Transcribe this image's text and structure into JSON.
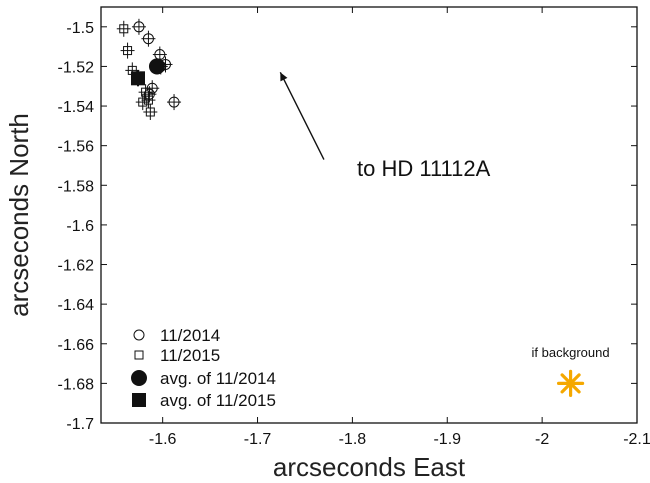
{
  "chart_data": {
    "type": "scatter",
    "xlabel": "arcseconds East",
    "ylabel": "arcseconds North",
    "xlim": [
      -1.535,
      -2.1
    ],
    "ylim": [
      -1.7,
      -1.49
    ],
    "x_ticks": [
      -1.6,
      -1.7,
      -1.8,
      -1.9,
      -2,
      -2.1
    ],
    "x_tick_labels": [
      "-1.6",
      "-1.7",
      "-1.8",
      "-1.9",
      "-2",
      "-2.1"
    ],
    "y_ticks": [
      -1.5,
      -1.52,
      -1.54,
      -1.56,
      -1.58,
      -1.6,
      -1.62,
      -1.64,
      -1.66,
      -1.68,
      -1.7
    ],
    "y_tick_labels": [
      "-1.5",
      "-1.52",
      "-1.54",
      "-1.56",
      "-1.58",
      "-1.6",
      "-1.62",
      "-1.64",
      "-1.66",
      "-1.68",
      "-1.7"
    ],
    "grid": false,
    "legend_position": "bottom-left",
    "series": [
      {
        "name": "11/2014",
        "marker": "circle-open",
        "points": [
          {
            "x": -1.575,
            "y": -1.5
          },
          {
            "x": -1.585,
            "y": -1.506
          },
          {
            "x": -1.597,
            "y": -1.514
          },
          {
            "x": -1.603,
            "y": -1.519
          },
          {
            "x": -1.598,
            "y": -1.52
          },
          {
            "x": -1.589,
            "y": -1.531
          },
          {
            "x": -1.586,
            "y": -1.534
          },
          {
            "x": -1.612,
            "y": -1.538
          }
        ]
      },
      {
        "name": "11/2015",
        "marker": "square-open",
        "points": [
          {
            "x": -1.559,
            "y": -1.501
          },
          {
            "x": -1.563,
            "y": -1.512
          },
          {
            "x": -1.568,
            "y": -1.522
          },
          {
            "x": -1.582,
            "y": -1.533
          },
          {
            "x": -1.585,
            "y": -1.537
          },
          {
            "x": -1.579,
            "y": -1.538
          },
          {
            "x": -1.587,
            "y": -1.543
          }
        ]
      },
      {
        "name": "avg. of 11/2014",
        "marker": "circle-filled",
        "points": [
          {
            "x": -1.594,
            "y": -1.52
          }
        ]
      },
      {
        "name": "avg. of 11/2015",
        "marker": "square-filled",
        "points": [
          {
            "x": -1.574,
            "y": -1.526
          }
        ]
      }
    ],
    "annotations": [
      {
        "text": "to HD 11112A",
        "arrow_from": {
          "x": -1.77,
          "y": -1.567
        },
        "arrow_to": {
          "x": -1.724,
          "y": -1.523
        }
      },
      {
        "text": "if background",
        "marker": "asterisk",
        "color": "#f5a800",
        "point": {
          "x": -2.03,
          "y": -1.68
        }
      }
    ]
  },
  "colors": {
    "ink": "#111111",
    "background_marker": "#f5a800"
  }
}
